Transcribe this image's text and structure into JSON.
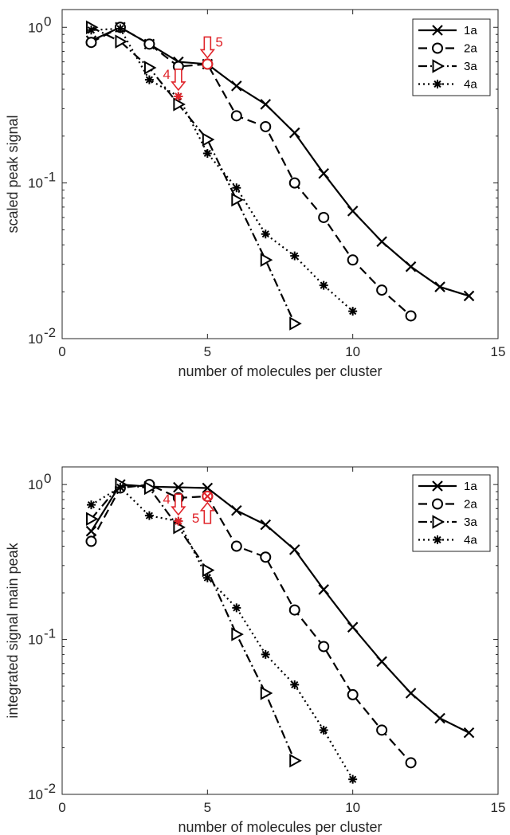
{
  "chart_data": [
    {
      "type": "line",
      "xlabel": "number of molecules per cluster",
      "ylabel": "scaled peak signal",
      "xlim": [
        0,
        15
      ],
      "ylim": [
        0.01,
        1.3
      ],
      "yscale": "log",
      "xticks": [
        0,
        5,
        10,
        15
      ],
      "yticks": [
        {
          "value": 1,
          "base": "10",
          "exp": "0"
        },
        {
          "value": 0.1,
          "base": "10",
          "exp": "-1"
        },
        {
          "value": 0.01,
          "base": "10",
          "exp": "-2"
        }
      ],
      "legend_position": "top-right",
      "series": [
        {
          "name": "1a",
          "marker": "x",
          "dash": "solid",
          "x": [
            1,
            2,
            3,
            4,
            5,
            6,
            7,
            8,
            9,
            10,
            11,
            12,
            13,
            14
          ],
          "y": [
            0.82,
            1.0,
            0.78,
            0.6,
            0.58,
            0.42,
            0.32,
            0.21,
            0.115,
            0.066,
            0.042,
            0.029,
            0.0215,
            0.0188
          ]
        },
        {
          "name": "2a",
          "marker": "circle",
          "dash": "dashed",
          "x": [
            1,
            2,
            3,
            4,
            5,
            6,
            7,
            8,
            9,
            10,
            11,
            12
          ],
          "y": [
            0.8,
            1.0,
            0.78,
            0.56,
            0.58,
            0.27,
            0.23,
            0.1,
            0.06,
            0.032,
            0.0205,
            0.014
          ]
        },
        {
          "name": "3a",
          "marker": "triangle-right",
          "dash": "dashdot",
          "x": [
            1,
            2,
            3,
            4,
            5,
            6,
            7,
            8
          ],
          "y": [
            1.0,
            0.81,
            0.55,
            0.32,
            0.19,
            0.078,
            0.032,
            0.0125
          ]
        },
        {
          "name": "4a",
          "marker": "asterisk",
          "dash": "dotted",
          "x": [
            1,
            2,
            3,
            4,
            5,
            6,
            7,
            8,
            9,
            10
          ],
          "y": [
            0.96,
            0.98,
            0.46,
            0.36,
            0.155,
            0.093,
            0.047,
            0.034,
            0.022,
            0.015
          ]
        }
      ],
      "annotations": [
        {
          "text": "5",
          "x": 5,
          "y": 0.58,
          "color": "#e0242a",
          "arrow": "down"
        },
        {
          "text": "4",
          "x": 4,
          "y": 0.36,
          "color": "#e0242a",
          "arrow": "down"
        }
      ]
    },
    {
      "type": "line",
      "xlabel": "number of molecules per cluster",
      "ylabel": "integrated signal main peak",
      "xlim": [
        0,
        15
      ],
      "ylim": [
        0.01,
        1.3
      ],
      "yscale": "log",
      "xticks": [
        0,
        5,
        10,
        15
      ],
      "yticks": [
        {
          "value": 1,
          "base": "10",
          "exp": "0"
        },
        {
          "value": 0.1,
          "base": "10",
          "exp": "-1"
        },
        {
          "value": 0.01,
          "base": "10",
          "exp": "-2"
        }
      ],
      "legend_position": "top-right",
      "series": [
        {
          "name": "1a",
          "marker": "x",
          "dash": "solid",
          "x": [
            1,
            2,
            3,
            4,
            5,
            6,
            7,
            8,
            9,
            10,
            11,
            12,
            13,
            14
          ],
          "y": [
            0.5,
            1.0,
            0.97,
            0.96,
            0.95,
            0.68,
            0.55,
            0.38,
            0.21,
            0.12,
            0.072,
            0.045,
            0.031,
            0.025
          ]
        },
        {
          "name": "2a",
          "marker": "circle",
          "dash": "dashed",
          "x": [
            1,
            2,
            3,
            4,
            5,
            6,
            7,
            8,
            9,
            10,
            11,
            12
          ],
          "y": [
            0.43,
            0.95,
            1.0,
            0.82,
            0.84,
            0.4,
            0.34,
            0.155,
            0.09,
            0.044,
            0.026,
            0.016
          ]
        },
        {
          "name": "3a",
          "marker": "triangle-right",
          "dash": "dashdot",
          "x": [
            1,
            2,
            3,
            4,
            5,
            6,
            7,
            8
          ],
          "y": [
            0.6,
            1.0,
            0.95,
            0.53,
            0.28,
            0.108,
            0.045,
            0.0165
          ]
        },
        {
          "name": "4a",
          "marker": "asterisk",
          "dash": "dotted",
          "x": [
            1,
            2,
            3,
            4,
            5,
            6,
            7,
            8,
            9,
            10
          ],
          "y": [
            0.74,
            0.96,
            0.63,
            0.58,
            0.25,
            0.16,
            0.08,
            0.051,
            0.026,
            0.0125
          ]
        }
      ],
      "annotations": [
        {
          "text": "4",
          "x": 4,
          "y": 0.58,
          "color": "#e0242a",
          "arrow": "down"
        },
        {
          "text": "5",
          "x": 5,
          "y": 0.84,
          "color": "#e0242a",
          "arrow": "up"
        }
      ]
    }
  ]
}
